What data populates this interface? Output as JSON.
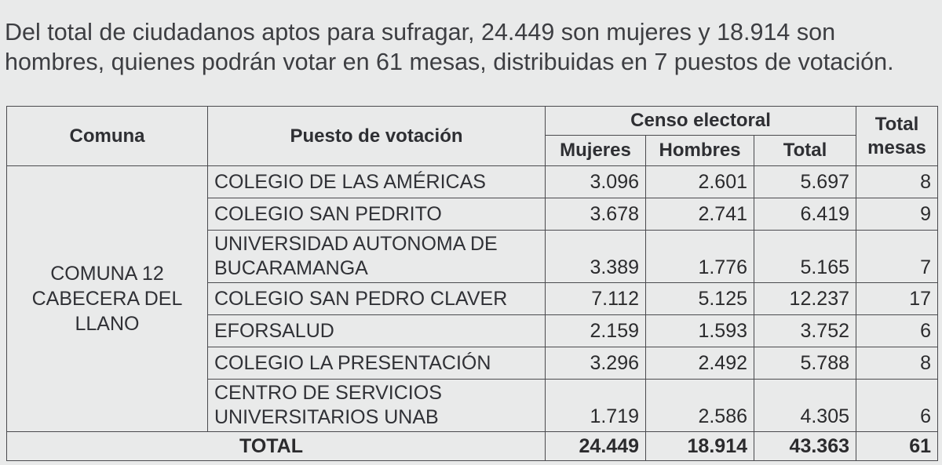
{
  "intro": {
    "line1": "Del total de ciudadanos aptos para sufragar, 24.449 son mujeres y 18.914 son",
    "line2": "hombres, quienes podrán votar en 61 mesas, distribuidas en 7 puestos de votación."
  },
  "table": {
    "headers": {
      "comuna": "Comuna",
      "puesto": "Puesto de votación",
      "censo": "Censo electoral",
      "mujeres": "Mujeres",
      "hombres": "Hombres",
      "total": "Total",
      "total_mesas": "Total mesas"
    },
    "comuna_name": "COMUNA 12 CABECERA DEL LLANO",
    "rows": [
      {
        "puesto": "COLEGIO DE LAS AMÉRICAS",
        "mujeres": "3.096",
        "hombres": "2.601",
        "total": "5.697",
        "mesas": "8"
      },
      {
        "puesto": "COLEGIO SAN PEDRITO",
        "mujeres": "3.678",
        "hombres": "2.741",
        "total": "6.419",
        "mesas": "9"
      },
      {
        "puesto": "UNIVERSIDAD AUTONOMA DE BUCARAMANGA",
        "mujeres": "3.389",
        "hombres": "1.776",
        "total": "5.165",
        "mesas": "7"
      },
      {
        "puesto": "COLEGIO SAN PEDRO CLAVER",
        "mujeres": "7.112",
        "hombres": "5.125",
        "total": "12.237",
        "mesas": "17"
      },
      {
        "puesto": "EFORSALUD",
        "mujeres": "2.159",
        "hombres": "1.593",
        "total": "3.752",
        "mesas": "6"
      },
      {
        "puesto": "COLEGIO LA PRESENTACIÓN",
        "mujeres": "3.296",
        "hombres": "2.492",
        "total": "5.788",
        "mesas": "8"
      },
      {
        "puesto": "CENTRO DE SERVICIOS UNIVERSITARIOS UNAB",
        "mujeres": "1.719",
        "hombres": "2.586",
        "total": "4.305",
        "mesas": "6"
      }
    ],
    "totals": {
      "label": "TOTAL",
      "mujeres": "24.449",
      "hombres": "18.914",
      "total": "43.363",
      "mesas": "61"
    }
  }
}
